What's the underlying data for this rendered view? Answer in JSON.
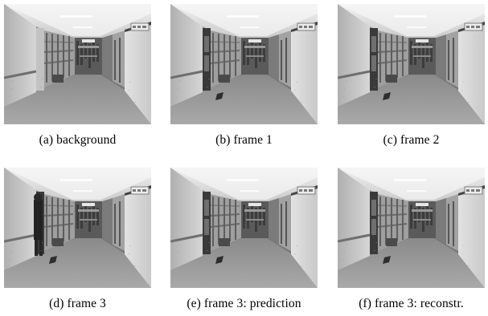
{
  "figure": {
    "panels": [
      {
        "caption": "(a) background",
        "person_present": false,
        "door_open": false
      },
      {
        "caption": "(b) frame 1",
        "person_present": false,
        "door_open": true
      },
      {
        "caption": "(c) frame 2",
        "person_present": false,
        "door_open": true
      },
      {
        "caption": "(d) frame 3",
        "person_present": true,
        "door_open": true
      },
      {
        "caption": "(e) frame 3: prediction",
        "person_present": false,
        "door_open": true
      },
      {
        "caption": "(f) frame 3: reconstr.",
        "person_present": false,
        "door_open": true
      }
    ]
  }
}
